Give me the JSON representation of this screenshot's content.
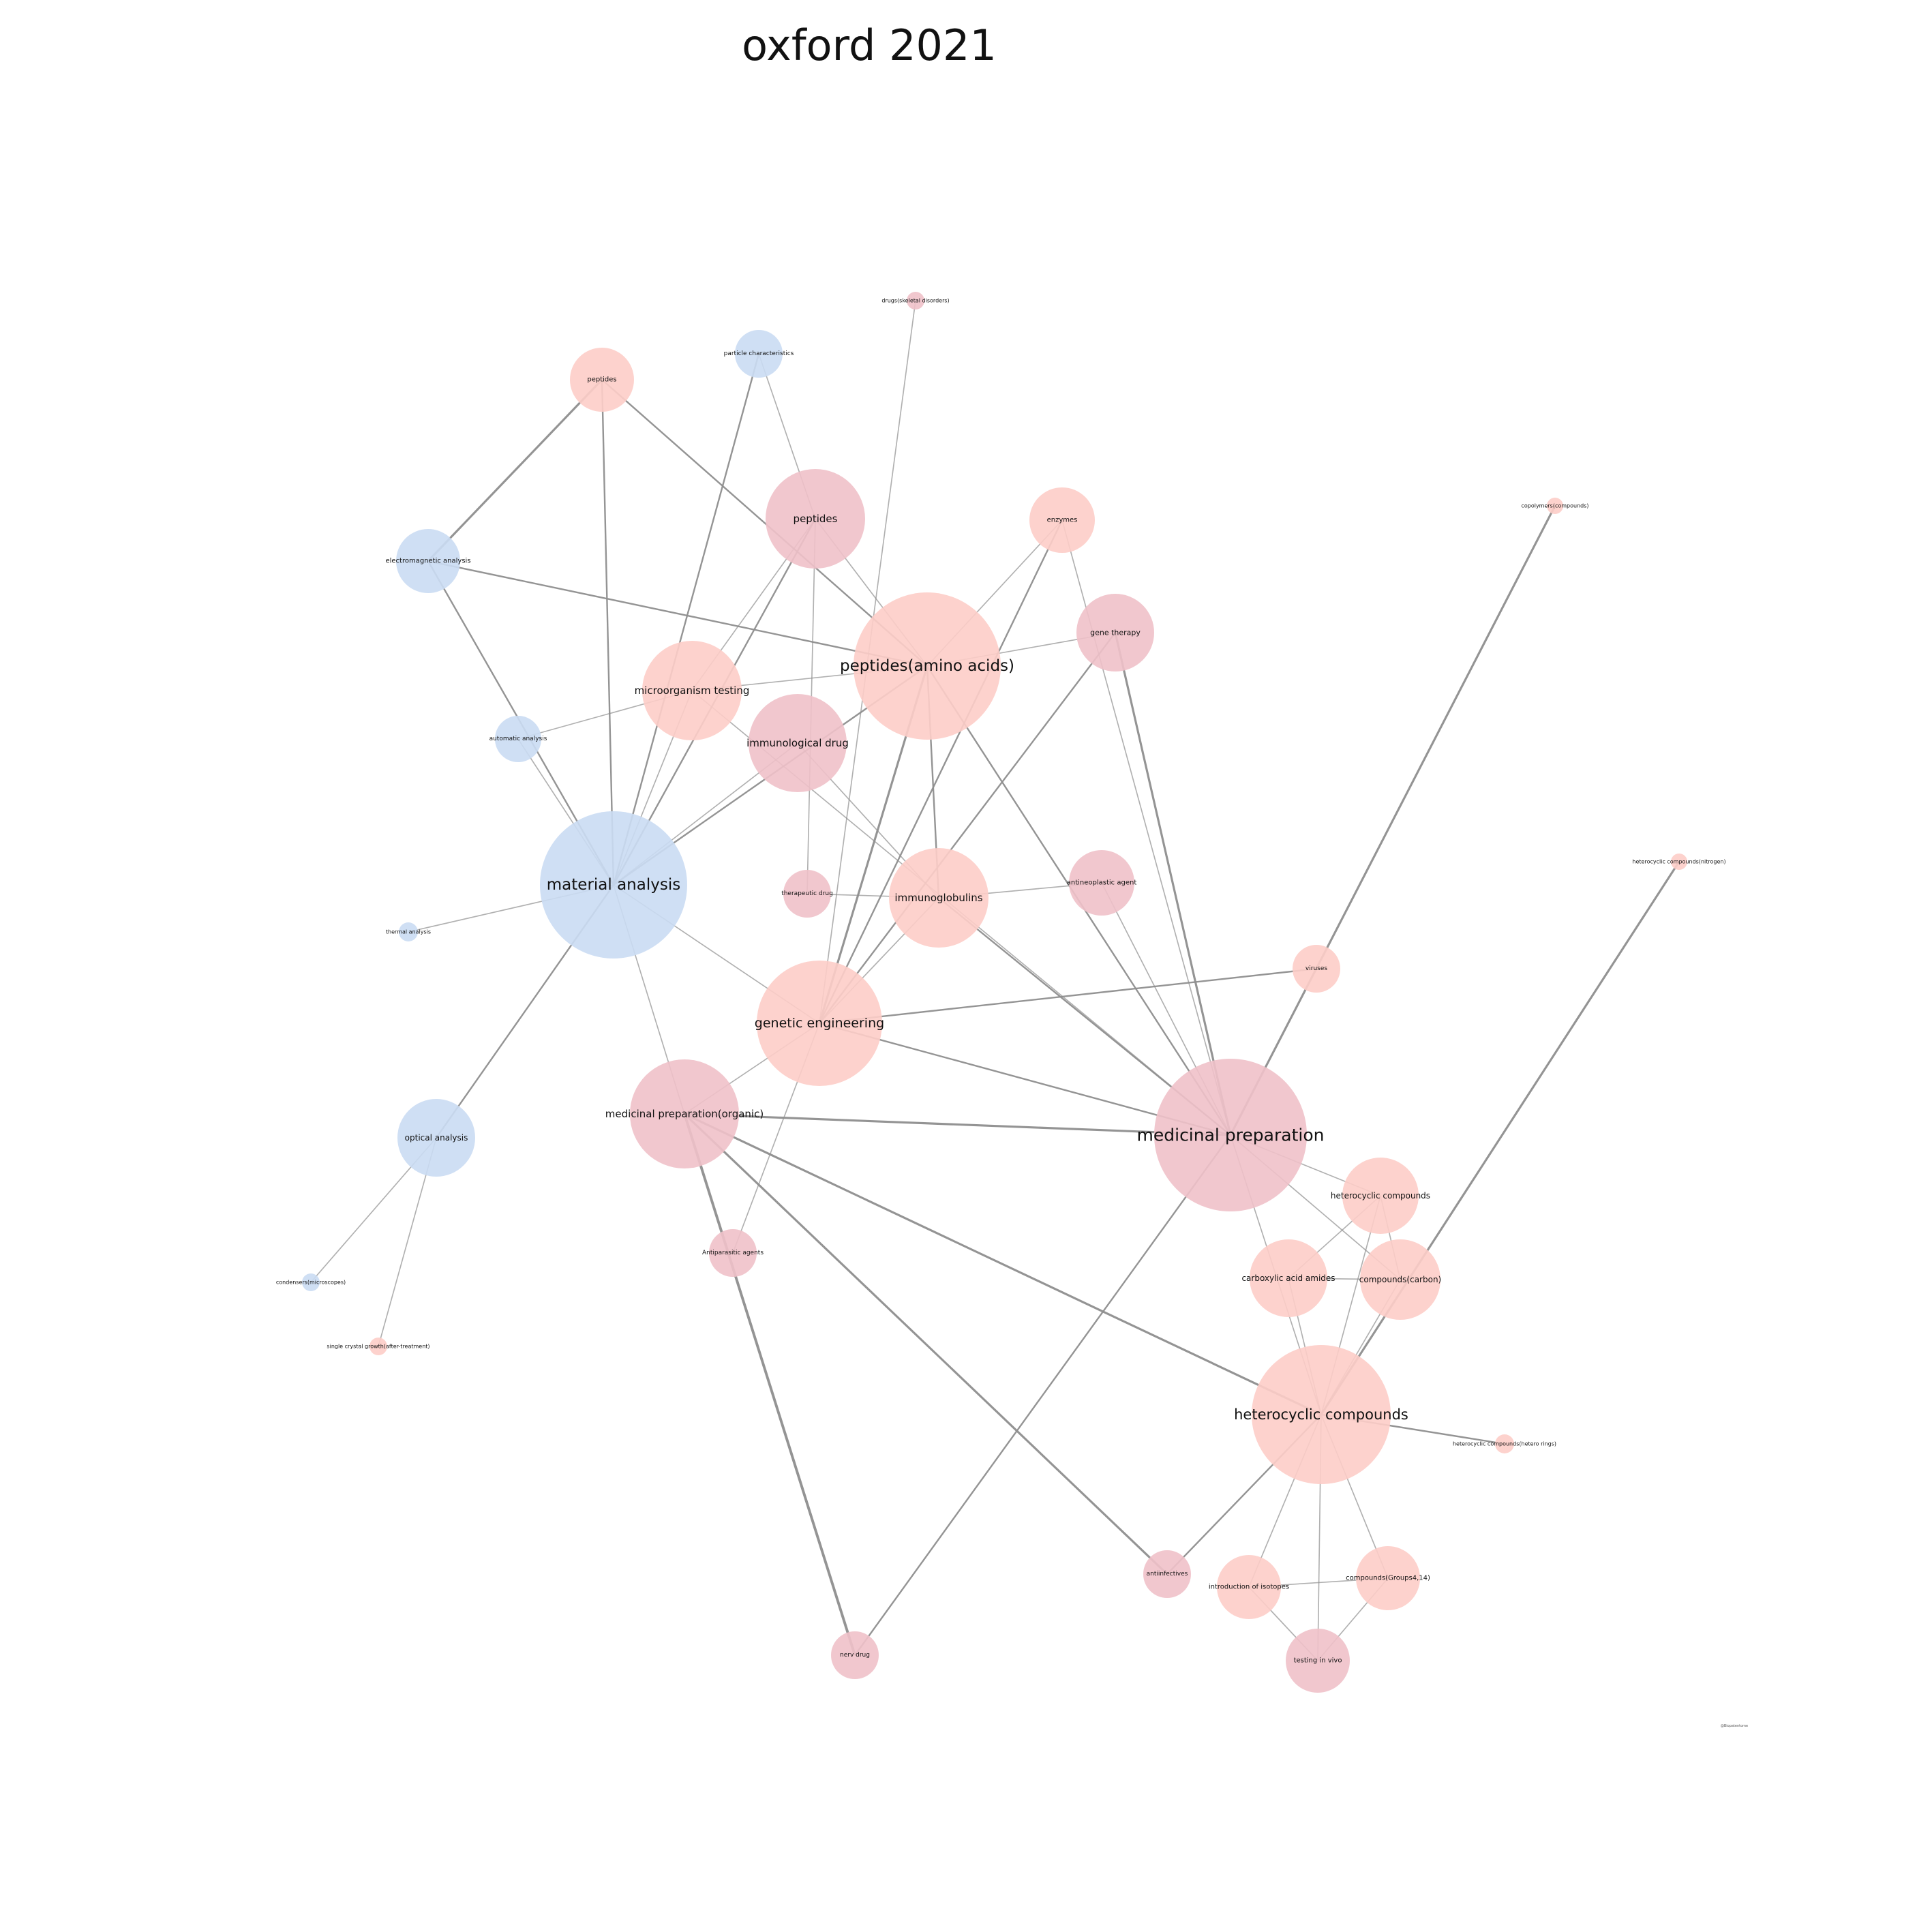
{
  "title": "oxford 2021",
  "credit": "@Biopatentome",
  "colors": {
    "blue": "#cadcf3",
    "salmon": "#fdcdc8",
    "pink": "#efc1c9",
    "edge": "#8e8e8e"
  },
  "nodes": [
    {
      "id": "material_analysis",
      "label": "material analysis",
      "group": "blue"
    },
    {
      "id": "medicinal_prep",
      "label": "medicinal preparation",
      "group": "pink"
    },
    {
      "id": "peptides_aa",
      "label": "peptides(amino acids)",
      "group": "salmon"
    },
    {
      "id": "heterocyclic_main",
      "label": "heterocyclic compounds",
      "group": "salmon"
    },
    {
      "id": "genetic_eng",
      "label": "genetic engineering",
      "group": "salmon"
    },
    {
      "id": "med_prep_organic",
      "label": "medicinal preparation(organic)",
      "group": "pink"
    },
    {
      "id": "immunological_drug",
      "label": "immunological drug",
      "group": "pink"
    },
    {
      "id": "immunoglobulins",
      "label": "immunoglobulins",
      "group": "salmon"
    },
    {
      "id": "peptides_pink",
      "label": "peptides",
      "group": "pink"
    },
    {
      "id": "microorganism_testing",
      "label": "microorganism testing",
      "group": "salmon"
    },
    {
      "id": "heterocyclic_small",
      "label": "heterocyclic compounds",
      "group": "salmon"
    },
    {
      "id": "compounds_carbon",
      "label": "compounds(carbon)",
      "group": "salmon"
    },
    {
      "id": "carboxylic",
      "label": "carboxylic acid amides",
      "group": "salmon"
    },
    {
      "id": "optical_analysis",
      "label": "optical analysis",
      "group": "blue"
    },
    {
      "id": "gene_therapy",
      "label": "gene therapy",
      "group": "pink"
    },
    {
      "id": "electromagnetic",
      "label": "electromagnetic analysis",
      "group": "blue"
    },
    {
      "id": "peptides_salmon",
      "label": "peptides",
      "group": "salmon"
    },
    {
      "id": "enzymes",
      "label": "enzymes",
      "group": "salmon"
    },
    {
      "id": "antineoplastic",
      "label": "antineoplastic agent",
      "group": "pink"
    },
    {
      "id": "compounds_groups",
      "label": "compounds(Groups4,14)",
      "group": "salmon"
    },
    {
      "id": "testing_in_vivo",
      "label": "testing in vivo",
      "group": "pink"
    },
    {
      "id": "intro_isotopes",
      "label": "introduction of isotopes",
      "group": "salmon"
    },
    {
      "id": "particle_char",
      "label": "particle characteristics",
      "group": "blue"
    },
    {
      "id": "automatic_analysis",
      "label": "automatic analysis",
      "group": "blue"
    },
    {
      "id": "therapeutic_drug",
      "label": "therapeutic drug",
      "group": "pink"
    },
    {
      "id": "antiparasitic",
      "label": "Antiparasitic agents",
      "group": "pink"
    },
    {
      "id": "nerv_drug",
      "label": "nerv drug",
      "group": "pink"
    },
    {
      "id": "antiinfectives",
      "label": "antiinfectives",
      "group": "pink"
    },
    {
      "id": "viruses",
      "label": "viruses",
      "group": "salmon"
    },
    {
      "id": "drugs_skeletal",
      "label": "drugs(skeletal disorders)",
      "group": "pink"
    },
    {
      "id": "thermal_analysis",
      "label": "thermal analysis",
      "group": "blue"
    },
    {
      "id": "condensers",
      "label": "condensers(microscopes)",
      "group": "blue"
    },
    {
      "id": "single_crystal",
      "label": "single crystal growth(after-treatment)",
      "group": "salmon"
    },
    {
      "id": "copolymers",
      "label": "copolymers(compounds)",
      "group": "salmon"
    },
    {
      "id": "hetero_nitrogen",
      "label": "heterocyclic compounds(nitrogen)",
      "group": "salmon"
    },
    {
      "id": "hetero_rings",
      "label": "heterocyclic compounds(hetero rings)",
      "group": "salmon"
    }
  ],
  "edges": [
    {
      "source": "material_analysis",
      "target": "peptides_salmon",
      "weight": 2
    },
    {
      "source": "material_analysis",
      "target": "electromagnetic",
      "weight": 2
    },
    {
      "source": "material_analysis",
      "target": "particle_char",
      "weight": 2
    },
    {
      "source": "material_analysis",
      "target": "peptides_pink",
      "weight": 2
    },
    {
      "source": "material_analysis",
      "target": "peptides_aa",
      "weight": 2
    },
    {
      "source": "material_analysis",
      "target": "immunological_drug",
      "weight": 1
    },
    {
      "source": "material_analysis",
      "target": "automatic_analysis",
      "weight": 1
    },
    {
      "source": "material_analysis",
      "target": "microorganism_testing",
      "weight": 1
    },
    {
      "source": "material_analysis",
      "target": "thermal_analysis",
      "weight": 1
    },
    {
      "source": "material_analysis",
      "target": "optical_analysis",
      "weight": 2
    },
    {
      "source": "material_analysis",
      "target": "genetic_eng",
      "weight": 1
    },
    {
      "source": "material_analysis",
      "target": "med_prep_organic",
      "weight": 1
    },
    {
      "source": "peptides_salmon",
      "target": "electromagnetic",
      "weight": 3
    },
    {
      "source": "peptides_salmon",
      "target": "peptides_aa",
      "weight": 2
    },
    {
      "source": "electromagnetic",
      "target": "peptides_aa",
      "weight": 2
    },
    {
      "source": "particle_char",
      "target": "peptides_pink",
      "weight": 1
    },
    {
      "source": "peptides_pink",
      "target": "peptides_aa",
      "weight": 1
    },
    {
      "source": "peptides_pink",
      "target": "therapeutic_drug",
      "weight": 1
    },
    {
      "source": "peptides_pink",
      "target": "microorganism_testing",
      "weight": 1
    },
    {
      "source": "drugs_skeletal",
      "target": "genetic_eng",
      "weight": 1
    },
    {
      "source": "microorganism_testing",
      "target": "peptides_aa",
      "weight": 1
    },
    {
      "source": "microorganism_testing",
      "target": "automatic_analysis",
      "weight": 1
    },
    {
      "source": "microorganism_testing",
      "target": "medicinal_prep",
      "weight": 1
    },
    {
      "source": "enzymes",
      "target": "peptides_aa",
      "weight": 1
    },
    {
      "source": "enzymes",
      "target": "genetic_eng",
      "weight": 2
    },
    {
      "source": "enzymes",
      "target": "medicinal_prep",
      "weight": 1
    },
    {
      "source": "gene_therapy",
      "target": "peptides_aa",
      "weight": 1
    },
    {
      "source": "gene_therapy",
      "target": "genetic_eng",
      "weight": 2
    },
    {
      "source": "gene_therapy",
      "target": "medicinal_prep",
      "weight": 3
    },
    {
      "source": "peptides_aa",
      "target": "genetic_eng",
      "weight": 3
    },
    {
      "source": "peptides_aa",
      "target": "immunoglobulins",
      "weight": 2
    },
    {
      "source": "peptides_aa",
      "target": "medicinal_prep",
      "weight": 2
    },
    {
      "source": "immunological_drug",
      "target": "immunoglobulins",
      "weight": 1
    },
    {
      "source": "therapeutic_drug",
      "target": "immunoglobulins",
      "weight": 1
    },
    {
      "source": "antineoplastic",
      "target": "immunoglobulins",
      "weight": 1
    },
    {
      "source": "immunoglobulins",
      "target": "medicinal_prep",
      "weight": 2
    },
    {
      "source": "immunoglobulins",
      "target": "genetic_eng",
      "weight": 1
    },
    {
      "source": "genetic_eng",
      "target": "viruses",
      "weight": 2
    },
    {
      "source": "genetic_eng",
      "target": "medicinal_prep",
      "weight": 2
    },
    {
      "source": "genetic_eng",
      "target": "med_prep_organic",
      "weight": 1
    },
    {
      "source": "genetic_eng",
      "target": "antiparasitic",
      "weight": 1
    },
    {
      "source": "med_prep_organic",
      "target": "medicinal_prep",
      "weight": 3
    },
    {
      "source": "med_prep_organic",
      "target": "nerv_drug",
      "weight": 4
    },
    {
      "source": "med_prep_organic",
      "target": "antiinfectives",
      "weight": 3
    },
    {
      "source": "med_prep_organic",
      "target": "heterocyclic_main",
      "weight": 3
    },
    {
      "source": "medicinal_prep",
      "target": "copolymers",
      "weight": 3
    },
    {
      "source": "medicinal_prep",
      "target": "antineoplastic",
      "weight": 1
    },
    {
      "source": "medicinal_prep",
      "target": "nerv_drug",
      "weight": 2
    },
    {
      "source": "medicinal_prep",
      "target": "heterocyclic_small",
      "weight": 1
    },
    {
      "source": "medicinal_prep",
      "target": "compounds_carbon",
      "weight": 1
    },
    {
      "source": "medicinal_prep",
      "target": "heterocyclic_main",
      "weight": 1
    },
    {
      "source": "heterocyclic_small",
      "target": "carboxylic",
      "weight": 1
    },
    {
      "source": "heterocyclic_small",
      "target": "compounds_carbon",
      "weight": 1
    },
    {
      "source": "heterocyclic_small",
      "target": "heterocyclic_main",
      "weight": 1
    },
    {
      "source": "carboxylic",
      "target": "compounds_carbon",
      "weight": 1
    },
    {
      "source": "carboxylic",
      "target": "heterocyclic_main",
      "weight": 1
    },
    {
      "source": "compounds_carbon",
      "target": "heterocyclic_main",
      "weight": 1
    },
    {
      "source": "heterocyclic_main",
      "target": "hetero_nitrogen",
      "weight": 3
    },
    {
      "source": "heterocyclic_main",
      "target": "hetero_rings",
      "weight": 2
    },
    {
      "source": "heterocyclic_main",
      "target": "antiinfectives",
      "weight": 2
    },
    {
      "source": "heterocyclic_main",
      "target": "intro_isotopes",
      "weight": 1
    },
    {
      "source": "heterocyclic_main",
      "target": "compounds_groups",
      "weight": 1
    },
    {
      "source": "heterocyclic_main",
      "target": "testing_in_vivo",
      "weight": 1
    },
    {
      "source": "intro_isotopes",
      "target": "compounds_groups",
      "weight": 1
    },
    {
      "source": "intro_isotopes",
      "target": "testing_in_vivo",
      "weight": 1
    },
    {
      "source": "compounds_groups",
      "target": "testing_in_vivo",
      "weight": 1
    },
    {
      "source": "optical_analysis",
      "target": "condensers",
      "weight": 1
    },
    {
      "source": "optical_analysis",
      "target": "single_crystal",
      "weight": 1
    }
  ]
}
